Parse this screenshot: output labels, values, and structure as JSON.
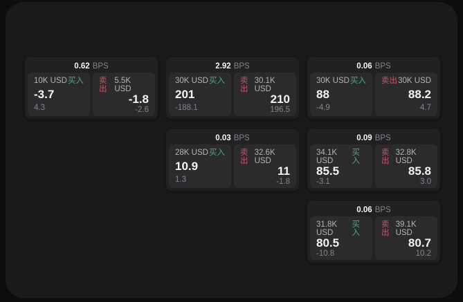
{
  "labels": {
    "bps_unit": "BPS",
    "buy": "买入",
    "sell": "卖出"
  },
  "colors": {
    "page_background": "#0d0d0e",
    "window_background": "#1a1a1c",
    "card_background": "#212123",
    "panel_background": "#2b2b2d",
    "buy_green": "#4fa97c",
    "sell_red": "#c65566",
    "primary_text": "#f4f4f5",
    "secondary_text": "#85858a"
  },
  "cards": [
    {
      "bps": "0.62",
      "buy": {
        "amount": "10K USD",
        "value": "-3.7",
        "sub": "4.3"
      },
      "sell": {
        "amount": "5.5K USD",
        "value": "-1.8",
        "sub": "-2.6"
      }
    },
    {
      "bps": "2.92",
      "buy": {
        "amount": "30K USD",
        "value": "201",
        "sub": "-188.1"
      },
      "sell": {
        "amount": "30.1K USD",
        "value": "210",
        "sub": "196.5"
      }
    },
    {
      "bps": "0.06",
      "buy": {
        "amount": "30K USD",
        "value": "88",
        "sub": "-4.9"
      },
      "sell": {
        "amount": "30K USD",
        "value": "88.2",
        "sub": "4.7"
      }
    },
    {
      "bps": "0.03",
      "buy": {
        "amount": "28K USD",
        "value": "10.9",
        "sub": "1.3"
      },
      "sell": {
        "amount": "32.6K USD",
        "value": "11",
        "sub": "-1.8"
      }
    },
    {
      "bps": "0.09",
      "buy": {
        "amount": "34.1K USD",
        "value": "85.5",
        "sub": "-3.1"
      },
      "sell": {
        "amount": "32.8K USD",
        "value": "85.8",
        "sub": "3.0"
      }
    },
    {
      "bps": "0.06",
      "buy": {
        "amount": "31.8K USD",
        "value": "80.5",
        "sub": "-10.8"
      },
      "sell": {
        "amount": "39.1K USD",
        "value": "80.7",
        "sub": "10.2"
      }
    }
  ]
}
